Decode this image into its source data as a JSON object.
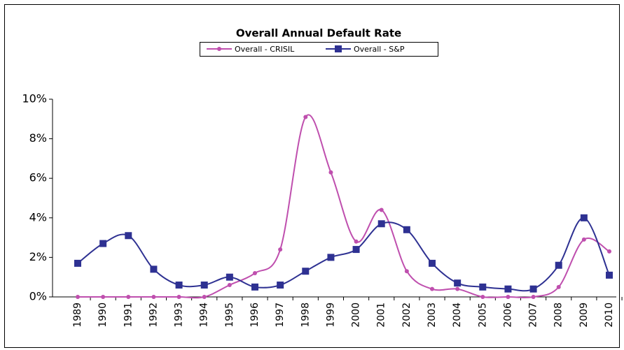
{
  "chart_data": {
    "type": "line",
    "title": "Overall Annual Default Rate",
    "categories": [
      "1989",
      "1990",
      "1991",
      "1992",
      "1993",
      "1994",
      "1995",
      "1996",
      "1997",
      "1998",
      "1999",
      "2000",
      "2001",
      "2002",
      "2003",
      "2004",
      "2005",
      "2006",
      "2007",
      "2008",
      "2009",
      "2010"
    ],
    "series": [
      {
        "name": "Overall - CRISIL",
        "color": "#bf4fae",
        "values": [
          0,
          0,
          0,
          0,
          0,
          0,
          0.6,
          1.2,
          2.4,
          9.1,
          6.3,
          2.8,
          4.4,
          1.3,
          0.4,
          0.4,
          0,
          0,
          0,
          0.5,
          2.9,
          2.3
        ]
      },
      {
        "name": "Overall - S&P",
        "color": "#2e3192",
        "values": [
          1.7,
          2.7,
          3.1,
          1.4,
          0.6,
          0.6,
          1.0,
          0.5,
          0.6,
          1.3,
          2.0,
          2.4,
          3.7,
          3.4,
          1.7,
          0.7,
          0.5,
          0.4,
          0.4,
          1.6,
          4.0,
          1.1
        ]
      }
    ],
    "ylim": [
      0,
      10
    ],
    "yticks": [
      {
        "value": 0,
        "label": "0%"
      },
      {
        "value": 2,
        "label": "2%"
      },
      {
        "value": 4,
        "label": "4%"
      },
      {
        "value": 6,
        "label": "6%"
      },
      {
        "value": 8,
        "label": "8%"
      },
      {
        "value": 10,
        "label": "10%"
      }
    ],
    "grid": false
  }
}
